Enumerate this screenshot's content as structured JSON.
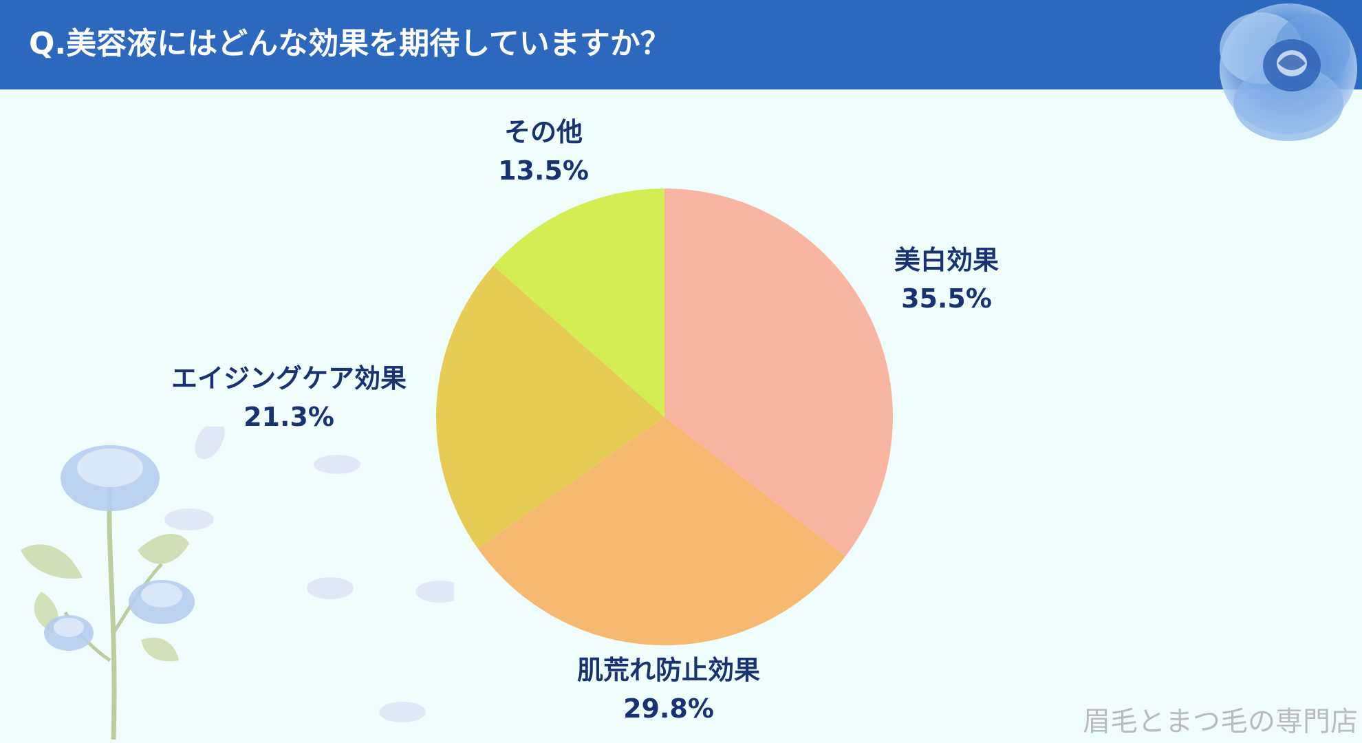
{
  "header": {
    "title": "Q.美容液にはどんな効果を期待していますか？"
  },
  "chart_data": {
    "type": "pie",
    "title": "Q.美容液にはどんな効果を期待していますか？",
    "categories": [
      "美白効果",
      "肌荒れ防止効果",
      "エイジングケア効果",
      "その他"
    ],
    "values": [
      35.5,
      29.8,
      21.3,
      13.5
    ],
    "percent_labels": [
      "35.5%",
      "29.8%",
      "21.3%",
      "13.5%"
    ],
    "colors": [
      "#f8b5a2",
      "#f6b972",
      "#e6cc55",
      "#d3ed53"
    ],
    "start_angle_deg": 0,
    "direction": "clockwise",
    "legend": "none"
  },
  "theme": {
    "header_color": "#2d68bf",
    "background": "#f0fdfd",
    "label_color": "#183272"
  },
  "footer": {
    "watermark": "眉毛とまつ毛の専門店"
  },
  "decorations": {
    "top_right": "blue-rose-icon",
    "bottom_left": "blue-rose-branch-icon"
  }
}
